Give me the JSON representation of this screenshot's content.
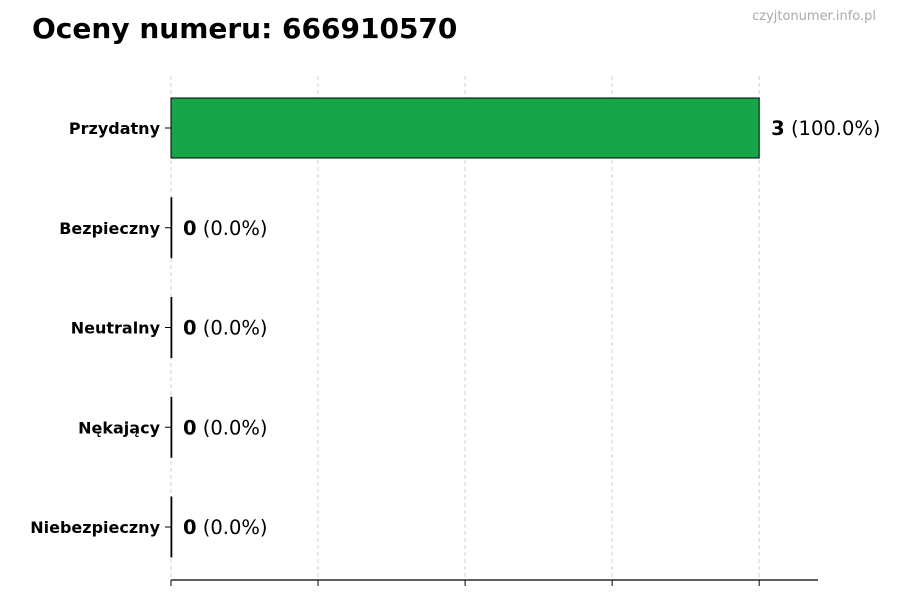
{
  "title": "Oceny numeru: 666910570",
  "watermark": "czyjtonumer.info.pl",
  "chart_data": {
    "type": "bar",
    "orientation": "horizontal",
    "title": "Oceny numeru: 666910570",
    "categories": [
      "Przydatny",
      "Bezpieczny",
      "Neutralny",
      "Nękający",
      "Niebezpieczny"
    ],
    "values": [
      3,
      0,
      0,
      0,
      0
    ],
    "value_labels": [
      {
        "count": "3",
        "percent": "(100.0%)"
      },
      {
        "count": "0",
        "percent": "(0.0%)"
      },
      {
        "count": "0",
        "percent": "(0.0%)"
      },
      {
        "count": "0",
        "percent": "(0.0%)"
      },
      {
        "count": "0",
        "percent": "(0.0%)"
      }
    ],
    "bar_color": "#18a54a",
    "xlim": [
      0,
      3.3
    ],
    "xticks": [
      0,
      0.75,
      1.5,
      2.25,
      3
    ],
    "xtick_labels_shown": false,
    "grid": "vertical dashed",
    "xlabel": "",
    "ylabel": ""
  }
}
